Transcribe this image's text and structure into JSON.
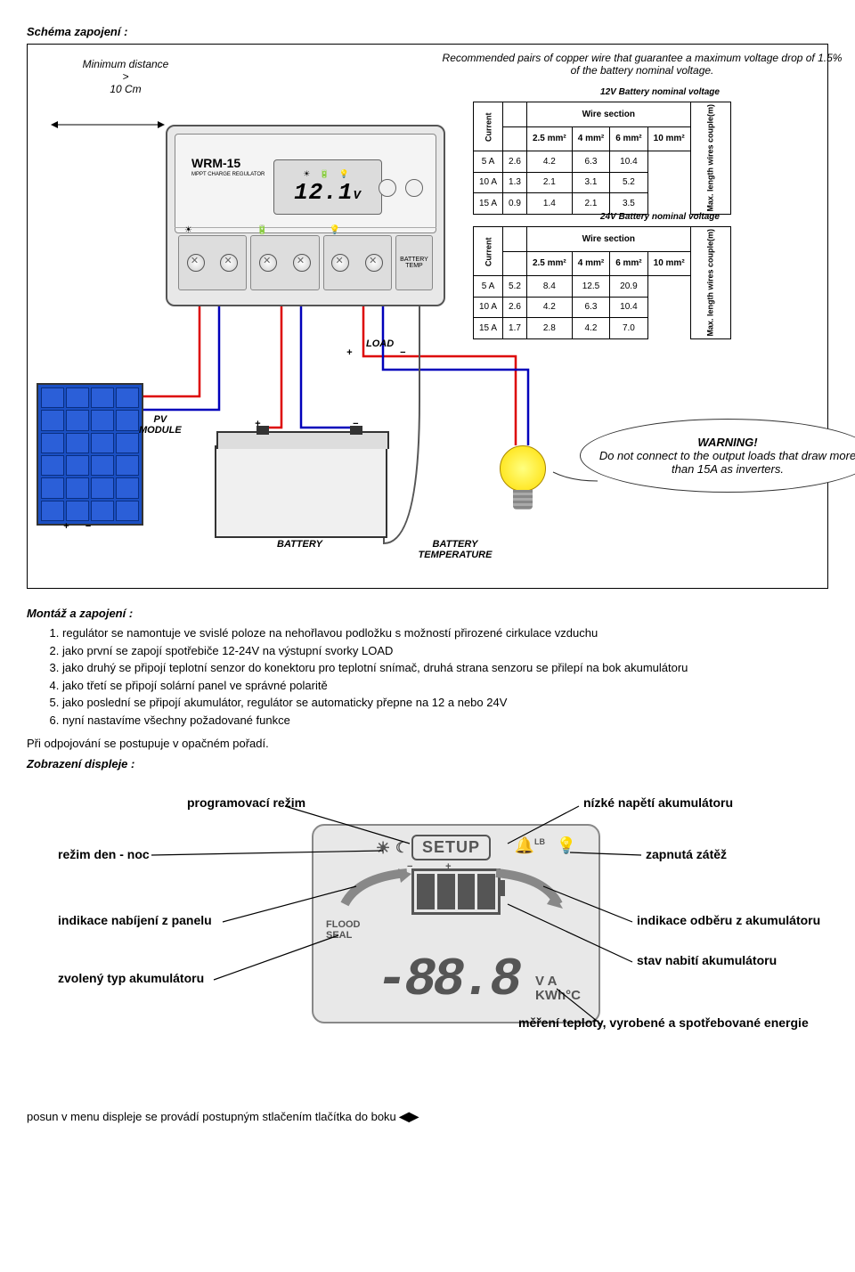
{
  "titles": {
    "schema": "Schéma zapojení :",
    "montaz": "Montáž a zapojení :",
    "display": "Zobrazení displeje :"
  },
  "diagram": {
    "min_distance": "Minimum distance\n>\n10 Cm",
    "recommend": "Recommended pairs of copper wire that guarantee a maximum voltage drop of 1.5% of the battery nominal voltage.",
    "table12_title": "12V Battery nominal voltage",
    "table24_title": "24V Battery nominal voltage",
    "wire_section": "Wire section",
    "side_current": "Current",
    "side_length": "Max. length wires couple(m)",
    "cols": [
      "2.5 mm²",
      "4 mm²",
      "6 mm²",
      "10 mm²"
    ],
    "table12_rows": [
      [
        "5 A",
        "2.6",
        "4.2",
        "6.3",
        "10.4"
      ],
      [
        "10 A",
        "1.3",
        "2.1",
        "3.1",
        "5.2"
      ],
      [
        "15 A",
        "0.9",
        "1.4",
        "2.1",
        "3.5"
      ]
    ],
    "table24_rows": [
      [
        "5 A",
        "5.2",
        "8.4",
        "12.5",
        "20.9"
      ],
      [
        "10 A",
        "2.6",
        "4.2",
        "6.3",
        "10.4"
      ],
      [
        "15 A",
        "1.7",
        "2.8",
        "4.2",
        "7.0"
      ]
    ],
    "controller_model": "WRM-15",
    "controller_sub": "MPPT CHARGE REGULATOR",
    "lcd_reading": "12.1",
    "lcd_unit": "V",
    "pv_label": "PV\nMODULE",
    "battery_label": "BATTERY",
    "load_label": "LOAD",
    "temp_label": "BATTERY\nTEMPERATURE",
    "warning_title": "WARNING!",
    "warning_text": "Do not connect to the output loads that draw more than 15A as inverters."
  },
  "steps": [
    "regulátor se namontuje ve svislé poloze na nehořlavou podložku s možností přirozené cirkulace vzduchu",
    "jako první se zapojí spotřebiče 12-24V na výstupní svorky LOAD",
    "jako druhý se připojí teplotní senzor do konektoru pro teplotní snímač, druhá strana senzoru se přilepí na bok akumulátoru",
    "jako třetí se připojí solární panel ve správné polaritě",
    "jako poslední se připojí akumulátor, regulátor se automaticky přepne na 12 a nebo 24V",
    "nyní nastavíme všechny požadované funkce"
  ],
  "opposite_order": "Při odpojování se postupuje v opačném pořadí.",
  "display_labels": {
    "prog_mode": "programovací režim",
    "low_batt": "nízké napětí akumulátoru",
    "day_night": "režim den - noc",
    "load_on": "zapnutá zátěž",
    "charging": "indikace nabíjení z panelu",
    "discharge": "indikace odběru z akumulátoru",
    "batt_type": "zvolený typ akumulátoru",
    "soc": "stav nabití akumulátoru",
    "units_text": "měření teploty, vyrobené a spotřebované energie",
    "setup": "SETUP",
    "flood_seal": "FLOOD\nSEAL",
    "digits": "-88.8",
    "units": "V A\nKWh°C"
  },
  "footer": "posun v menu displeje se provádí postupným stlačením tlačítka do boku"
}
